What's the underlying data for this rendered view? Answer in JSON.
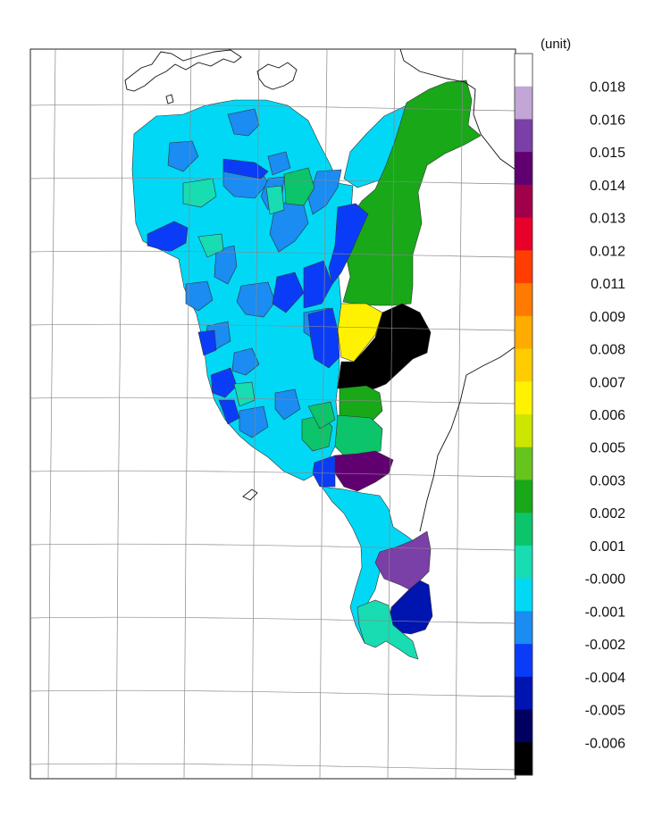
{
  "legend": {
    "unit": "(unit)",
    "ticks": [
      "0.018",
      "0.016",
      "0.015",
      "0.014",
      "0.013",
      "0.012",
      "0.011",
      "0.009",
      "0.008",
      "0.007",
      "0.006",
      "0.005",
      "0.003",
      "0.002",
      "0.001",
      "-0.000",
      "-0.001",
      "-0.002",
      "-0.004",
      "-0.005",
      "-0.006"
    ],
    "colors": [
      "#ffffff",
      "#c2a6d6",
      "#7b3fa8",
      "#600070",
      "#a0004a",
      "#e8002a",
      "#ff3d00",
      "#ff7a00",
      "#ffab00",
      "#ffcc00",
      "#fff200",
      "#cce600",
      "#66c41c",
      "#18a818",
      "#0cc46a",
      "#18dcb2",
      "#00d8f6",
      "#1a8cf2",
      "#0a3cf8",
      "#0014b0",
      "#000060",
      "#000000"
    ]
  },
  "colors": {
    "cyan": "#00d8f6",
    "light_blue": "#1a8cf2",
    "blue": "#0a3cf8",
    "dark_blue": "#0014b0",
    "teal": "#18dcb2",
    "green": "#18a818",
    "mid_green": "#0cc46a",
    "yellow": "#fff200",
    "dark_purple": "#600070",
    "purple": "#7b3fa8",
    "black": "#000000"
  }
}
